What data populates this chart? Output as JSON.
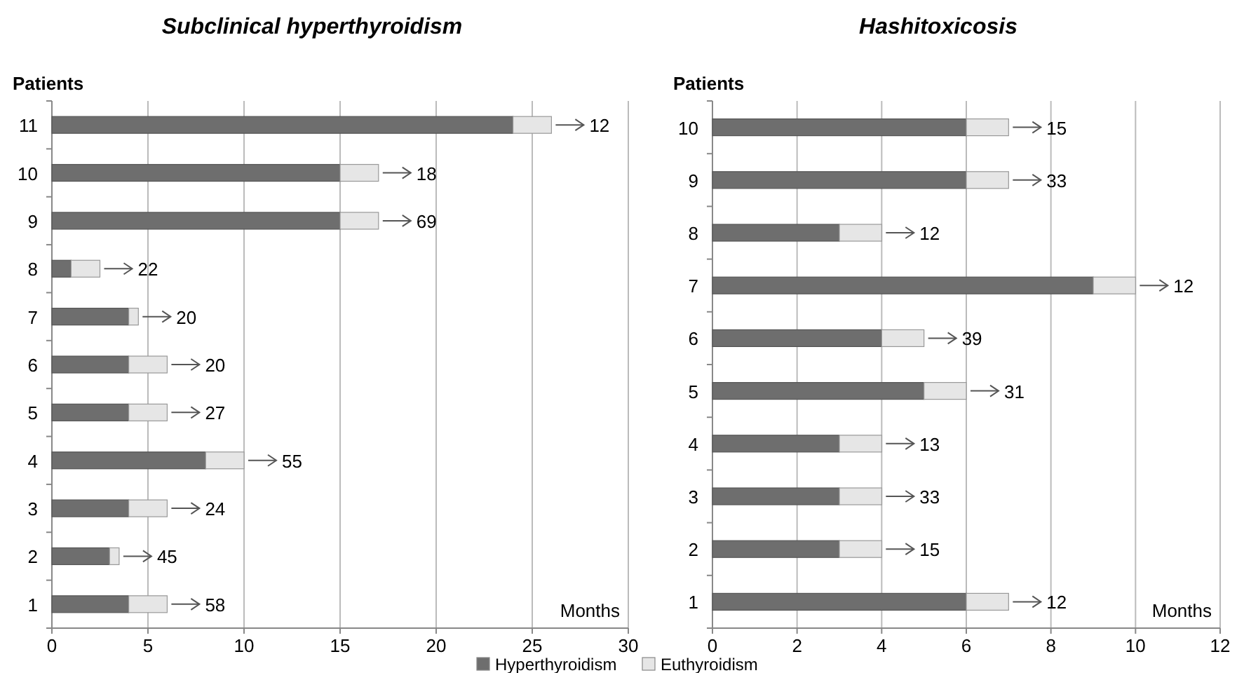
{
  "chart_data": [
    {
      "type": "bar",
      "orientation": "horizontal",
      "stacked": true,
      "title": "Subclinical hyperthyroidism",
      "ylabel": "Patients",
      "xlabel": "Months",
      "categories": [
        "11",
        "10",
        "9",
        "8",
        "7",
        "6",
        "5",
        "4",
        "3",
        "2",
        "1"
      ],
      "series": [
        {
          "name": "Hyperthyroidism",
          "color": "#6e6e6e",
          "values": [
            24,
            15,
            15,
            1,
            4,
            4,
            4,
            8,
            4,
            3,
            4
          ]
        },
        {
          "name": "Euthyroidism",
          "color": "#e6e6e6",
          "values": [
            2,
            2,
            2,
            1.5,
            0.5,
            2,
            2,
            2,
            2,
            0.5,
            2
          ]
        }
      ],
      "xlim": [
        0,
        30
      ],
      "xticks": [
        0,
        5,
        10,
        15,
        20,
        25,
        30
      ],
      "grid": "x",
      "legend": "bottom",
      "annotations": [
        {
          "text": "12",
          "x": 26,
          "y": "11"
        },
        {
          "text": "18",
          "x": 17,
          "y": "10"
        },
        {
          "text": "69",
          "x": 17,
          "y": "9"
        },
        {
          "text": "22",
          "x": 2.5,
          "y": "8"
        },
        {
          "text": "20",
          "x": 4.5,
          "y": "7"
        },
        {
          "text": "20",
          "x": 6,
          "y": "6"
        },
        {
          "text": "27",
          "x": 6,
          "y": "5"
        },
        {
          "text": "55",
          "x": 10,
          "y": "4"
        },
        {
          "text": "24",
          "x": 6,
          "y": "3"
        },
        {
          "text": "45",
          "x": 3.5,
          "y": "2"
        },
        {
          "text": "58",
          "x": 6,
          "y": "1"
        }
      ]
    },
    {
      "type": "bar",
      "orientation": "horizontal",
      "stacked": true,
      "title": "Hashitoxicosis",
      "ylabel": "Patients",
      "xlabel": "Months",
      "categories": [
        "10",
        "9",
        "8",
        "7",
        "6",
        "5",
        "4",
        "3",
        "2",
        "1"
      ],
      "series": [
        {
          "color": "#6e6e6e",
          "values": [
            6,
            6,
            3,
            9,
            4,
            5,
            3,
            3,
            3,
            6
          ]
        },
        {
          "color": "#e6e6e6",
          "values": [
            1,
            1,
            1,
            1,
            1,
            1,
            1,
            1,
            1,
            1
          ]
        }
      ],
      "xlim": [
        0,
        12
      ],
      "xticks": [
        0,
        2,
        4,
        6,
        8,
        10,
        12
      ],
      "grid": "x",
      "annotations": [
        {
          "text": "15",
          "x": 7,
          "y": "10"
        },
        {
          "text": "33",
          "x": 7,
          "y": "9"
        },
        {
          "text": "12",
          "x": 4,
          "y": "8"
        },
        {
          "text": "12",
          "x": 10,
          "y": "7"
        },
        {
          "text": "39",
          "x": 5,
          "y": "6"
        },
        {
          "text": "31",
          "x": 6,
          "y": "5"
        },
        {
          "text": "13",
          "x": 4,
          "y": "4"
        },
        {
          "text": "33",
          "x": 4,
          "y": "3"
        },
        {
          "text": "15",
          "x": 4,
          "y": "2"
        },
        {
          "text": "12",
          "x": 7,
          "y": "1"
        }
      ]
    }
  ]
}
